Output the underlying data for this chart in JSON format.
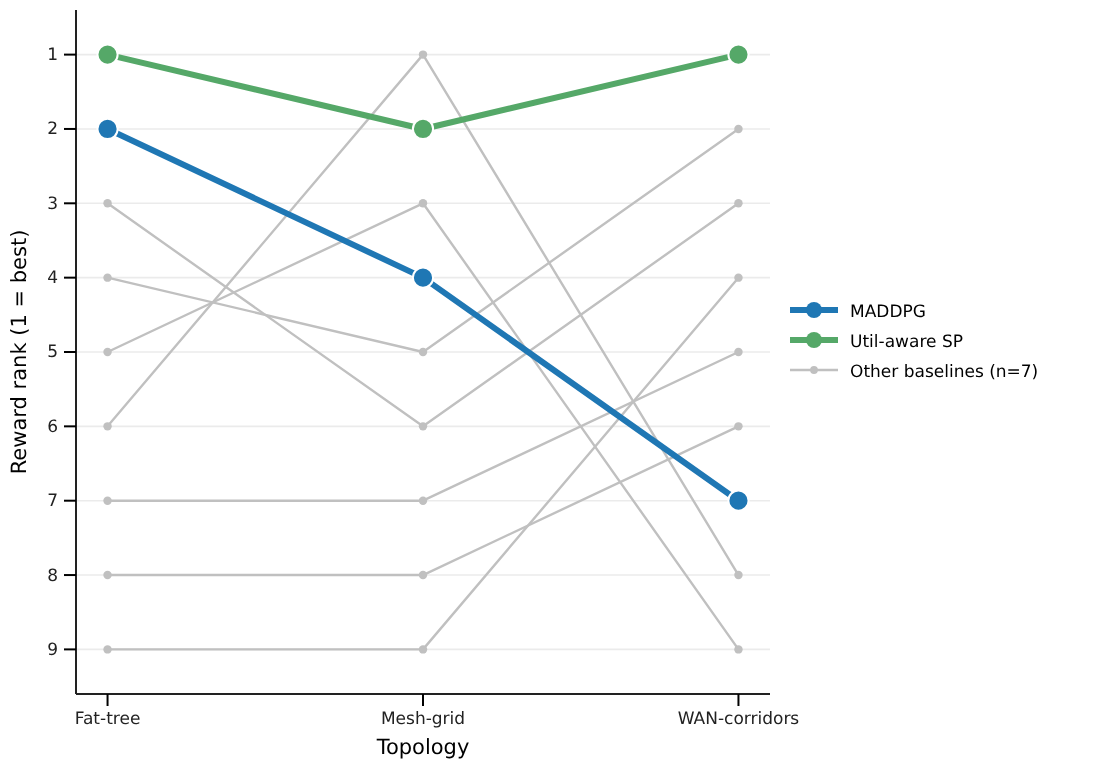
{
  "chart_data": {
    "type": "line",
    "xlabel": "Topology",
    "ylabel": "Reward rank (1 = best)",
    "categories": [
      "Fat-tree",
      "Mesh-grid",
      "WAN-corridors"
    ],
    "ylim": [
      9.6,
      0.4
    ],
    "yticks": [
      1,
      2,
      3,
      4,
      5,
      6,
      7,
      8,
      9
    ],
    "grid": "y",
    "legend": "right",
    "marker": "circle",
    "line_style": "solid",
    "series": [
      {
        "name": "MADDPG",
        "color": "#1f77b4",
        "values": [
          2,
          4,
          7
        ]
      },
      {
        "name": "Util-aware SP",
        "color": "#55a868",
        "values": [
          1,
          2,
          1
        ]
      },
      {
        "name": "Other baselines (n=7)",
        "color": "#c0c0c0",
        "values": [
          3,
          6,
          3
        ]
      },
      {
        "color": "#c0c0c0",
        "values": [
          4,
          5,
          2
        ]
      },
      {
        "color": "#c0c0c0",
        "values": [
          5,
          3,
          9
        ]
      },
      {
        "color": "#c0c0c0",
        "values": [
          6,
          1,
          8
        ]
      },
      {
        "color": "#c0c0c0",
        "values": [
          7,
          7,
          5
        ]
      },
      {
        "color": "#c0c0c0",
        "values": [
          8,
          8,
          6
        ]
      },
      {
        "color": "#c0c0c0",
        "values": [
          9,
          9,
          4
        ]
      }
    ]
  }
}
